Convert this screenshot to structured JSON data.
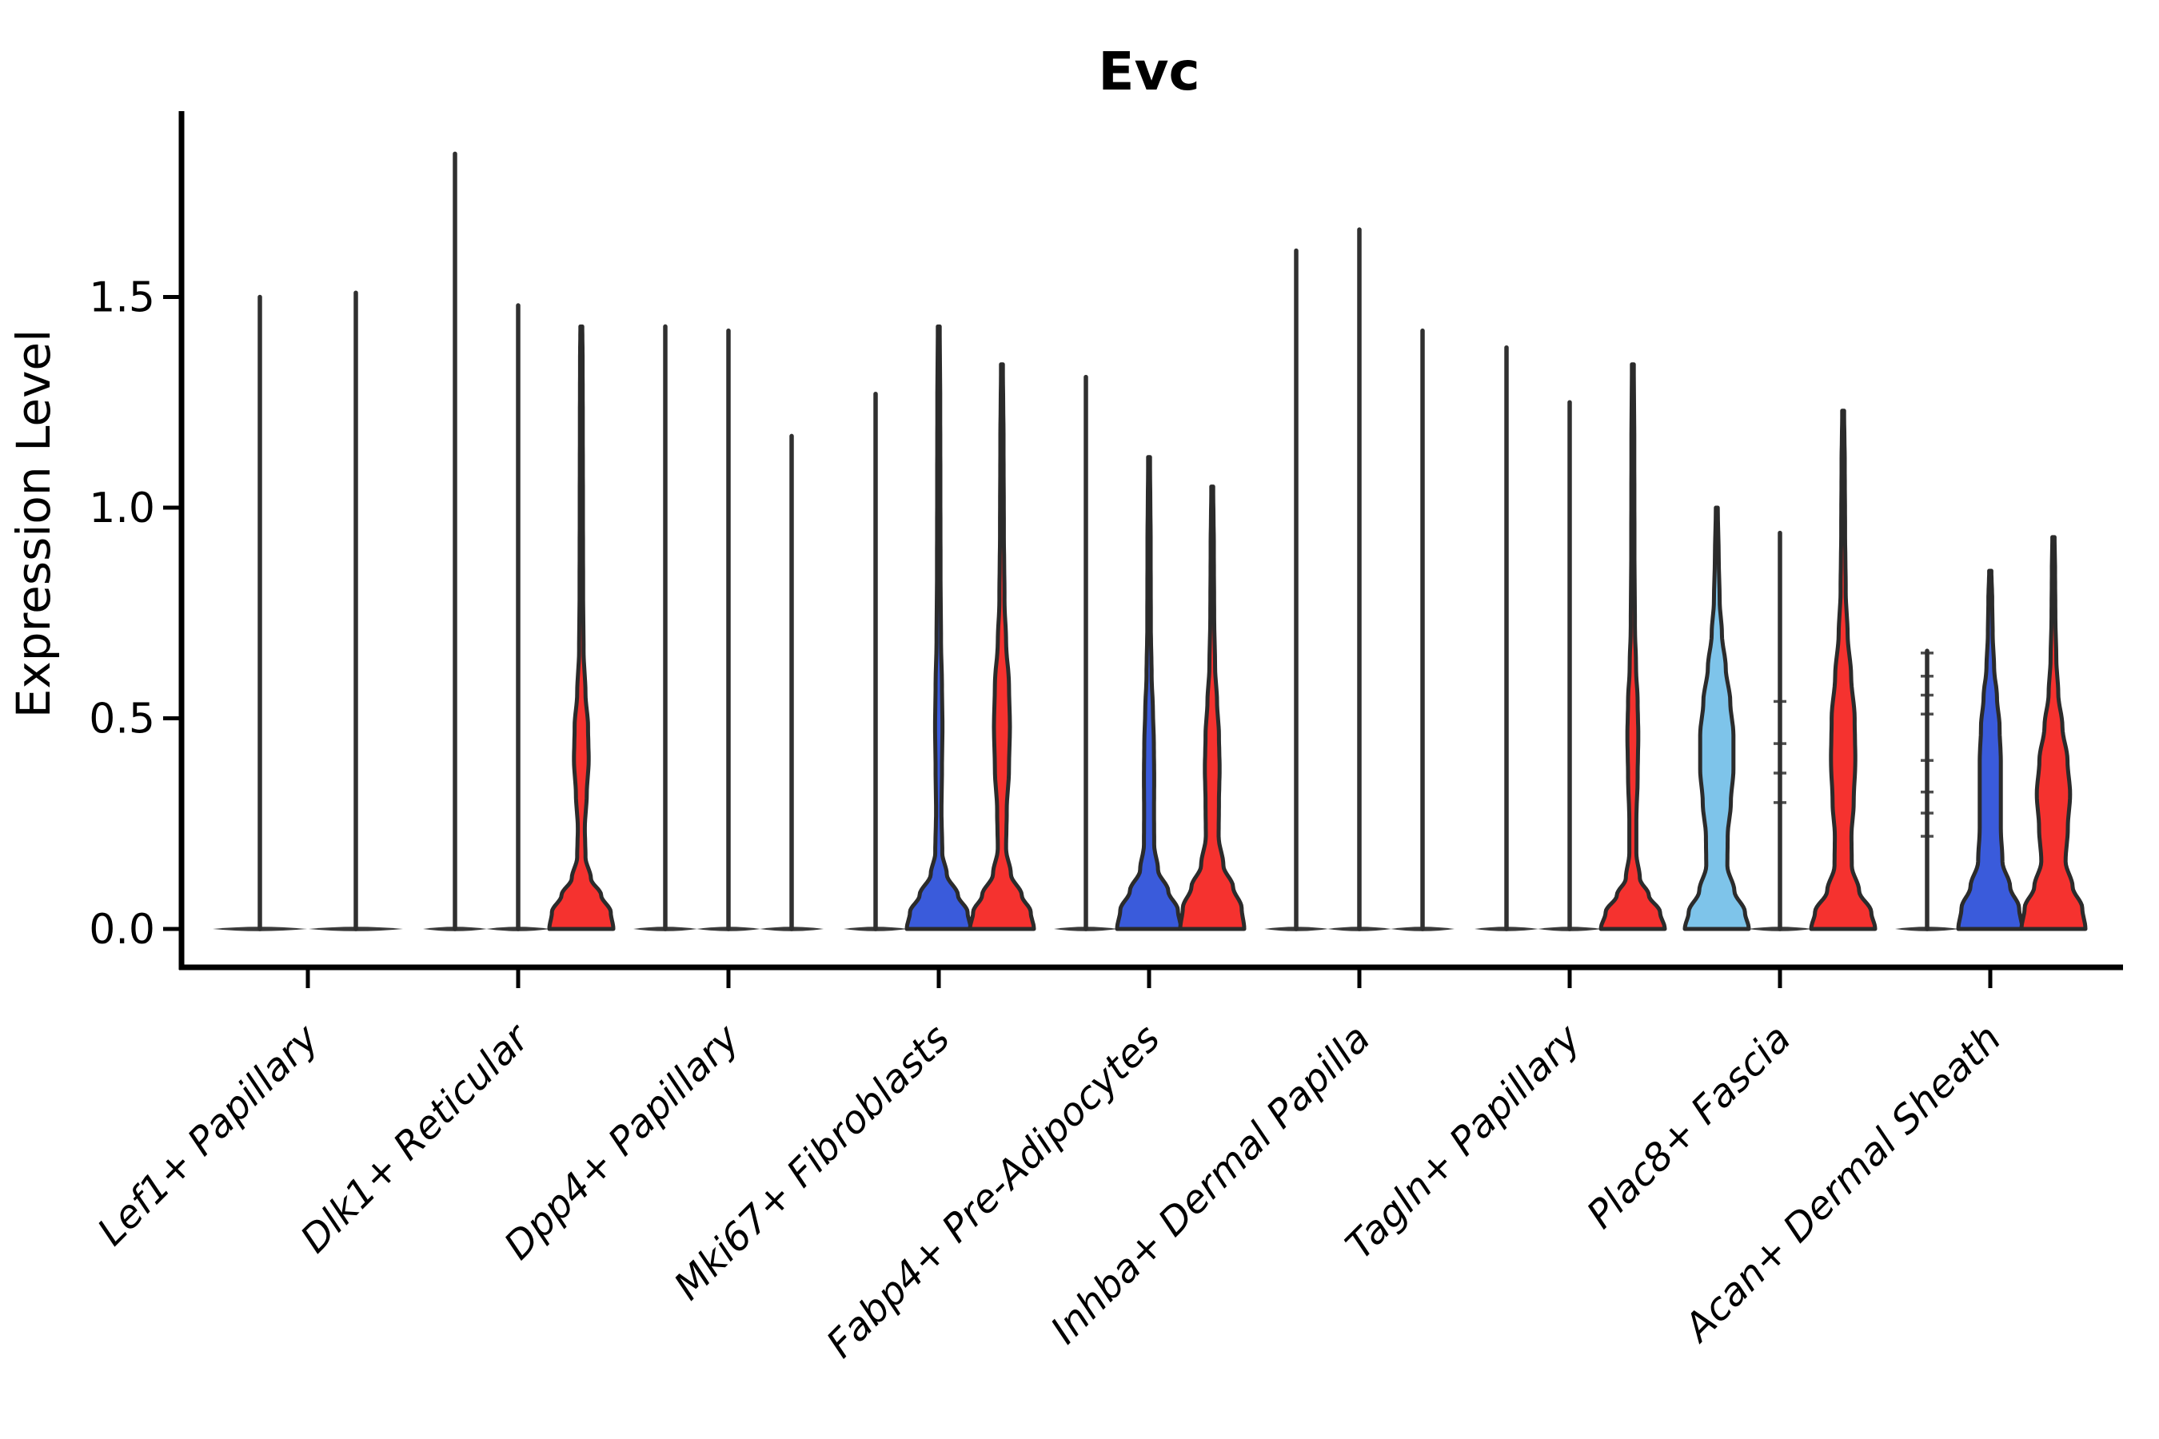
{
  "figure": {
    "title": "Evc",
    "ylabel": "Expression Level"
  },
  "colors": {
    "red": "#F5322F",
    "blue": "#3A5BDB",
    "lightblue": "#7EC4EA",
    "outline": "#2B2B2B",
    "spike": "#303030",
    "baseline_lens": "#3A3A3A",
    "axis": "#000000",
    "background": "#FFFFFF"
  },
  "chart_data": {
    "type": "violin",
    "title": "Evc",
    "xlabel": "",
    "ylabel": "Expression Level",
    "ylim": [
      0,
      1.94
    ],
    "grid": false,
    "legend": "none",
    "yticks": [
      {
        "value": 0.0,
        "label": "0.0"
      },
      {
        "value": 0.5,
        "label": "0.5"
      },
      {
        "value": 1.0,
        "label": "1.0"
      },
      {
        "value": 1.5,
        "label": "1.5"
      }
    ],
    "categories": [
      "Lef1+ Papillary",
      "Dlk1+ Reticular",
      "Dpp4+ Papillary",
      "Mki67+ Fibroblasts",
      "Fabp4+ Pre-Adipocytes",
      "Inhba+ Dermal Papilla",
      "Tagln+ Papillary",
      "Plac8+ Fascia",
      "Acan+ Dermal Sheath"
    ],
    "violins": [
      {
        "category_index": 0,
        "slot": 0,
        "n_slots": 2,
        "fill": "none",
        "max": 1.5
      },
      {
        "category_index": 0,
        "slot": 1,
        "n_slots": 2,
        "fill": "none",
        "max": 1.51
      },
      {
        "category_index": 1,
        "slot": 0,
        "n_slots": 3,
        "fill": "none",
        "max": 1.84
      },
      {
        "category_index": 1,
        "slot": 1,
        "n_slots": 3,
        "fill": "none",
        "max": 1.48
      },
      {
        "category_index": 1,
        "slot": 2,
        "n_slots": 3,
        "fill": "red",
        "max": 1.43,
        "profile": [
          [
            0,
            1.0
          ],
          [
            0.04,
            0.92
          ],
          [
            0.08,
            0.62
          ],
          [
            0.12,
            0.3
          ],
          [
            0.17,
            0.13
          ],
          [
            0.24,
            0.11
          ],
          [
            0.32,
            0.17
          ],
          [
            0.4,
            0.23
          ],
          [
            0.48,
            0.21
          ],
          [
            0.56,
            0.13
          ],
          [
            0.66,
            0.07
          ],
          [
            0.8,
            0.055
          ],
          [
            1.0,
            0.05
          ],
          [
            1.2,
            0.045
          ],
          [
            1.35,
            0.04
          ],
          [
            1.43,
            0.03
          ]
        ]
      },
      {
        "category_index": 2,
        "slot": 0,
        "n_slots": 3,
        "fill": "none",
        "max": 1.43
      },
      {
        "category_index": 2,
        "slot": 1,
        "n_slots": 3,
        "fill": "none",
        "max": 1.42
      },
      {
        "category_index": 2,
        "slot": 2,
        "n_slots": 3,
        "fill": "none",
        "max": 1.17
      },
      {
        "category_index": 3,
        "slot": 0,
        "n_slots": 3,
        "fill": "none",
        "max": 1.27
      },
      {
        "category_index": 3,
        "slot": 1,
        "n_slots": 3,
        "fill": "blue",
        "max": 1.43,
        "profile": [
          [
            0,
            1.0
          ],
          [
            0.04,
            0.9
          ],
          [
            0.08,
            0.6
          ],
          [
            0.13,
            0.25
          ],
          [
            0.18,
            0.11
          ],
          [
            0.28,
            0.085
          ],
          [
            0.38,
            0.1
          ],
          [
            0.48,
            0.115
          ],
          [
            0.58,
            0.1
          ],
          [
            0.68,
            0.07
          ],
          [
            0.85,
            0.055
          ],
          [
            1.05,
            0.05
          ],
          [
            1.25,
            0.045
          ],
          [
            1.43,
            0.03
          ]
        ]
      },
      {
        "category_index": 3,
        "slot": 2,
        "n_slots": 3,
        "fill": "red",
        "max": 1.34,
        "profile": [
          [
            0,
            1.0
          ],
          [
            0.04,
            0.9
          ],
          [
            0.08,
            0.62
          ],
          [
            0.13,
            0.28
          ],
          [
            0.19,
            0.13
          ],
          [
            0.28,
            0.15
          ],
          [
            0.38,
            0.22
          ],
          [
            0.48,
            0.25
          ],
          [
            0.58,
            0.22
          ],
          [
            0.68,
            0.13
          ],
          [
            0.78,
            0.08
          ],
          [
            0.95,
            0.06
          ],
          [
            1.15,
            0.05
          ],
          [
            1.34,
            0.03
          ]
        ]
      },
      {
        "category_index": 4,
        "slot": 0,
        "n_slots": 3,
        "fill": "none",
        "max": 1.31
      },
      {
        "category_index": 4,
        "slot": 1,
        "n_slots": 3,
        "fill": "blue",
        "max": 1.12,
        "profile": [
          [
            0,
            1.0
          ],
          [
            0.045,
            0.9
          ],
          [
            0.09,
            0.6
          ],
          [
            0.14,
            0.28
          ],
          [
            0.2,
            0.16
          ],
          [
            0.28,
            0.155
          ],
          [
            0.36,
            0.16
          ],
          [
            0.44,
            0.15
          ],
          [
            0.52,
            0.12
          ],
          [
            0.6,
            0.08
          ],
          [
            0.72,
            0.055
          ],
          [
            0.9,
            0.05
          ],
          [
            1.12,
            0.03
          ]
        ]
      },
      {
        "category_index": 4,
        "slot": 2,
        "n_slots": 3,
        "fill": "red",
        "max": 1.05,
        "profile": [
          [
            0,
            1.0
          ],
          [
            0.05,
            0.92
          ],
          [
            0.1,
            0.65
          ],
          [
            0.15,
            0.35
          ],
          [
            0.22,
            0.2
          ],
          [
            0.3,
            0.21
          ],
          [
            0.38,
            0.23
          ],
          [
            0.46,
            0.21
          ],
          [
            0.54,
            0.15
          ],
          [
            0.62,
            0.09
          ],
          [
            0.74,
            0.06
          ],
          [
            0.9,
            0.05
          ],
          [
            1.05,
            0.03
          ]
        ]
      },
      {
        "category_index": 5,
        "slot": 0,
        "n_slots": 3,
        "fill": "none",
        "max": 1.61
      },
      {
        "category_index": 5,
        "slot": 1,
        "n_slots": 3,
        "fill": "none",
        "max": 1.66
      },
      {
        "category_index": 5,
        "slot": 2,
        "n_slots": 3,
        "fill": "none",
        "max": 1.42
      },
      {
        "category_index": 6,
        "slot": 0,
        "n_slots": 3,
        "fill": "none",
        "max": 1.38
      },
      {
        "category_index": 6,
        "slot": 1,
        "n_slots": 3,
        "fill": "none",
        "max": 1.25
      },
      {
        "category_index": 6,
        "slot": 2,
        "n_slots": 3,
        "fill": "red",
        "max": 1.34,
        "profile": [
          [
            0,
            1.0
          ],
          [
            0.04,
            0.85
          ],
          [
            0.08,
            0.5
          ],
          [
            0.12,
            0.22
          ],
          [
            0.18,
            0.11
          ],
          [
            0.26,
            0.11
          ],
          [
            0.36,
            0.15
          ],
          [
            0.46,
            0.17
          ],
          [
            0.54,
            0.15
          ],
          [
            0.62,
            0.1
          ],
          [
            0.72,
            0.065
          ],
          [
            0.9,
            0.05
          ],
          [
            1.15,
            0.045
          ],
          [
            1.34,
            0.03
          ]
        ]
      },
      {
        "category_index": 7,
        "slot": 0,
        "n_slots": 3,
        "fill": "lightblue",
        "max": 1.0,
        "profile": [
          [
            0,
            1.0
          ],
          [
            0.04,
            0.88
          ],
          [
            0.09,
            0.55
          ],
          [
            0.15,
            0.33
          ],
          [
            0.22,
            0.34
          ],
          [
            0.3,
            0.44
          ],
          [
            0.38,
            0.52
          ],
          [
            0.46,
            0.52
          ],
          [
            0.54,
            0.42
          ],
          [
            0.62,
            0.28
          ],
          [
            0.7,
            0.16
          ],
          [
            0.78,
            0.09
          ],
          [
            0.88,
            0.06
          ],
          [
            1.0,
            0.03
          ]
        ]
      },
      {
        "category_index": 7,
        "slot": 1,
        "n_slots": 3,
        "fill": "none",
        "max": 0.94,
        "points": [
          0.3,
          0.37,
          0.44,
          0.54
        ]
      },
      {
        "category_index": 7,
        "slot": 2,
        "n_slots": 3,
        "fill": "red",
        "max": 1.23,
        "profile": [
          [
            0,
            1.0
          ],
          [
            0.04,
            0.88
          ],
          [
            0.09,
            0.5
          ],
          [
            0.15,
            0.27
          ],
          [
            0.22,
            0.26
          ],
          [
            0.3,
            0.33
          ],
          [
            0.4,
            0.38
          ],
          [
            0.5,
            0.36
          ],
          [
            0.6,
            0.25
          ],
          [
            0.7,
            0.14
          ],
          [
            0.8,
            0.08
          ],
          [
            0.95,
            0.06
          ],
          [
            1.1,
            0.05
          ],
          [
            1.23,
            0.03
          ]
        ]
      },
      {
        "category_index": 8,
        "slot": 0,
        "n_slots": 3,
        "fill": "none",
        "max": 0.66,
        "points": [
          0.22,
          0.275,
          0.325,
          0.4,
          0.51,
          0.555,
          0.6,
          0.655
        ]
      },
      {
        "category_index": 8,
        "slot": 1,
        "n_slots": 3,
        "fill": "blue",
        "max": 0.85,
        "profile": [
          [
            0,
            1.0
          ],
          [
            0.05,
            0.9
          ],
          [
            0.1,
            0.62
          ],
          [
            0.16,
            0.38
          ],
          [
            0.24,
            0.33
          ],
          [
            0.32,
            0.33
          ],
          [
            0.4,
            0.33
          ],
          [
            0.48,
            0.29
          ],
          [
            0.55,
            0.21
          ],
          [
            0.62,
            0.12
          ],
          [
            0.7,
            0.075
          ],
          [
            0.78,
            0.06
          ],
          [
            0.85,
            0.035
          ]
        ]
      },
      {
        "category_index": 8,
        "slot": 2,
        "n_slots": 3,
        "fill": "red",
        "max": 0.93,
        "profile": [
          [
            0,
            1.0
          ],
          [
            0.05,
            0.9
          ],
          [
            0.1,
            0.6
          ],
          [
            0.16,
            0.38
          ],
          [
            0.24,
            0.45
          ],
          [
            0.32,
            0.52
          ],
          [
            0.4,
            0.44
          ],
          [
            0.48,
            0.28
          ],
          [
            0.56,
            0.15
          ],
          [
            0.64,
            0.09
          ],
          [
            0.74,
            0.06
          ],
          [
            0.85,
            0.05
          ],
          [
            0.93,
            0.035
          ]
        ]
      }
    ]
  }
}
